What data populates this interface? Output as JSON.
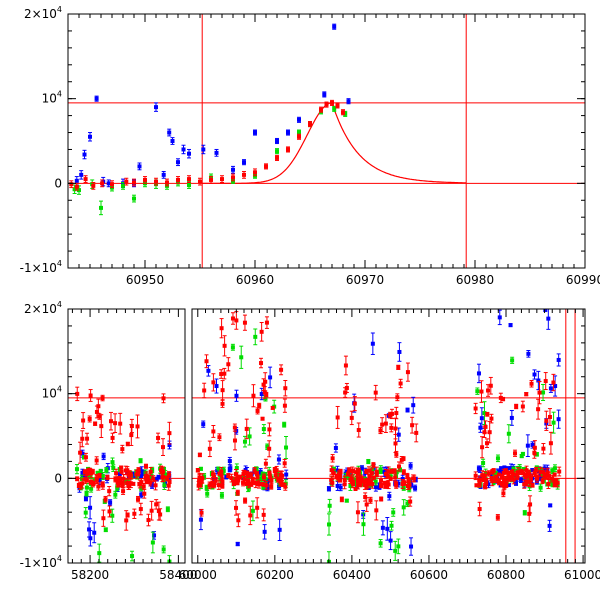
{
  "chart_data": [
    {
      "type": "scatter",
      "panel": "top",
      "xlim": [
        60943,
        60990
      ],
      "ylim": [
        -10000,
        20000
      ],
      "x_ticks": [
        {
          "value": 60950,
          "label": "60950"
        },
        {
          "value": 60960,
          "label": "60960"
        },
        {
          "value": 60970,
          "label": "60970"
        },
        {
          "value": 60980,
          "label": "60980"
        },
        {
          "value": 60990,
          "label": "60990"
        }
      ],
      "y_ticks": [
        {
          "value": 20000,
          "base": "2×10",
          "exp": "4"
        },
        {
          "value": 10000,
          "base": "10",
          "exp": "4"
        },
        {
          "value": 0,
          "base": "0",
          "exp": ""
        },
        {
          "value": -10000,
          "base": "-1×10",
          "exp": "4"
        }
      ],
      "hlines": [
        9500,
        0
      ],
      "vlines": [
        60955.2,
        60979.2
      ],
      "model_curve": {
        "t0": 60967.0,
        "peak": 9500,
        "baseline": 0,
        "rise_tau": 3.0,
        "decay_tau": 2.4,
        "x_start": 60955.2,
        "x_end": 60979.2
      },
      "series": [
        {
          "color": "#0000ff",
          "points": [
            [
              60943.8,
              300,
              500
            ],
            [
              60944.2,
              1000,
              500
            ],
            [
              60944.5,
              3400,
              500
            ],
            [
              60945.0,
              5500,
              500
            ],
            [
              60945.6,
              10000,
              300
            ],
            [
              60946.2,
              200,
              500
            ],
            [
              60946.7,
              0,
              400
            ],
            [
              60948.0,
              0,
              500
            ],
            [
              60949.0,
              0,
              400
            ],
            [
              60949.5,
              2000,
              400
            ],
            [
              60951.0,
              9000,
              500
            ],
            [
              60951.7,
              1000,
              400
            ],
            [
              60952.2,
              6000,
              400
            ],
            [
              60952.5,
              5000,
              400
            ],
            [
              60953.0,
              2500,
              400
            ],
            [
              60953.5,
              4000,
              500
            ],
            [
              60954.0,
              3500,
              500
            ],
            [
              60955.3,
              4000,
              500
            ],
            [
              60956.5,
              3600,
              400
            ],
            [
              60958.0,
              1600,
              400
            ],
            [
              60959.0,
              2500,
              300
            ],
            [
              60960.0,
              6000,
              300
            ],
            [
              60962.0,
              5000,
              300
            ],
            [
              60963.0,
              6000,
              300
            ],
            [
              60964.0,
              7500,
              300
            ],
            [
              60966.3,
              10500,
              300
            ],
            [
              60967.2,
              18500,
              300
            ],
            [
              60968.5,
              9700,
              300
            ]
          ]
        },
        {
          "color": "#00dd00",
          "points": [
            [
              60943.6,
              -700,
              500
            ],
            [
              60944.0,
              -800,
              500
            ],
            [
              60945.2,
              -100,
              500
            ],
            [
              60946.0,
              -2900,
              800
            ],
            [
              60947.0,
              -500,
              400
            ],
            [
              60948.0,
              -300,
              400
            ],
            [
              60949.0,
              -1800,
              400
            ],
            [
              60950.0,
              0,
              400
            ],
            [
              60951.0,
              -100,
              500
            ],
            [
              60952.0,
              -300,
              400
            ],
            [
              60953.0,
              100,
              400
            ],
            [
              60954.0,
              -200,
              400
            ],
            [
              60956.0,
              700,
              400
            ],
            [
              60958.0,
              300,
              300
            ],
            [
              60960.0,
              900,
              300
            ],
            [
              60962.0,
              3800,
              300
            ],
            [
              60964.0,
              6000,
              300
            ],
            [
              60965.0,
              7000,
              300
            ],
            [
              60966.0,
              8500,
              300
            ],
            [
              60967.2,
              8800,
              300
            ],
            [
              60968.2,
              8200,
              300
            ]
          ]
        },
        {
          "color": "#ff0000",
          "points": [
            [
              60943.3,
              -100,
              400
            ],
            [
              60943.8,
              -400,
              400
            ],
            [
              60944.6,
              500,
              400
            ],
            [
              60945.3,
              -300,
              400
            ],
            [
              60946.1,
              0,
              400
            ],
            [
              60947.0,
              -100,
              400
            ],
            [
              60948.3,
              200,
              400
            ],
            [
              60949.0,
              100,
              400
            ],
            [
              60950.0,
              400,
              400
            ],
            [
              60951.0,
              200,
              400
            ],
            [
              60952.0,
              100,
              400
            ],
            [
              60953.0,
              400,
              400
            ],
            [
              60954.0,
              500,
              400
            ],
            [
              60955.0,
              200,
              400
            ],
            [
              60956.0,
              400,
              400
            ],
            [
              60957.0,
              500,
              400
            ],
            [
              60958.0,
              700,
              400
            ],
            [
              60959.0,
              1000,
              400
            ],
            [
              60960.0,
              1300,
              400
            ],
            [
              60961.0,
              2000,
              300
            ],
            [
              60962.0,
              3000,
              300
            ],
            [
              60963.0,
              4000,
              300
            ],
            [
              60964.0,
              5500,
              300
            ],
            [
              60965.0,
              7000,
              300
            ],
            [
              60966.0,
              8700,
              300
            ],
            [
              60966.5,
              9300,
              300
            ],
            [
              60967.0,
              9500,
              300
            ],
            [
              60967.5,
              9200,
              300
            ],
            [
              60968.0,
              8400,
              300
            ]
          ]
        }
      ]
    },
    {
      "type": "scatter",
      "panel": "bottom",
      "broken_x_axis": true,
      "segments": [
        {
          "xlim": [
            58150,
            58415
          ],
          "ticks": [
            {
              "value": 58200,
              "label": "58200"
            },
            {
              "value": 58400,
              "label": "58400"
            }
          ]
        },
        {
          "xlim": [
            59985,
            61005
          ],
          "ticks": [
            {
              "value": 60000,
              "label": "60000"
            },
            {
              "value": 60200,
              "label": "60200"
            },
            {
              "value": 60400,
              "label": "60400"
            },
            {
              "value": 60600,
              "label": "60600"
            },
            {
              "value": 60800,
              "label": "60800"
            },
            {
              "value": 61000,
              "label": "61000"
            }
          ]
        }
      ],
      "ylim": [
        -10000,
        20000
      ],
      "y_ticks": [
        {
          "value": 20000,
          "base": "2×10",
          "exp": "4"
        },
        {
          "value": 10000,
          "base": "10",
          "exp": "4"
        },
        {
          "value": 0,
          "base": "0",
          "exp": ""
        },
        {
          "value": -10000,
          "base": "-1×10",
          "exp": "4"
        }
      ],
      "hlines": [
        9500,
        0
      ],
      "vlines": [
        60955.2,
        60979.2
      ],
      "clusters": [
        {
          "x_range": [
            58170,
            58380
          ],
          "red": 120,
          "green": 50,
          "blue": 35,
          "red_spread": [
            -5000,
            10000
          ],
          "green_spread": [
            -10000,
            3000
          ],
          "blue_spread": [
            -8000,
            8000
          ]
        },
        {
          "x_range": [
            60000,
            60230
          ],
          "red": 120,
          "green": 50,
          "blue": 35,
          "red_spread": [
            -5000,
            19000
          ],
          "green_spread": [
            -10000,
            18000
          ],
          "blue_spread": [
            -9000,
            14000
          ]
        },
        {
          "x_range": [
            60340,
            60570
          ],
          "red": 110,
          "green": 45,
          "blue": 45,
          "red_spread": [
            -5000,
            14000
          ],
          "green_spread": [
            -10000,
            3000
          ],
          "blue_spread": [
            -10000,
            16000
          ]
        },
        {
          "x_range": [
            60720,
            60940
          ],
          "red": 110,
          "green": 45,
          "blue": 55,
          "red_spread": [
            -5000,
            12000
          ],
          "green_spread": [
            -8000,
            16000
          ],
          "blue_spread": [
            -6000,
            20000
          ]
        }
      ],
      "series_colors": {
        "red": "#ff0000",
        "green": "#00dd00",
        "blue": "#0000ff"
      }
    }
  ]
}
